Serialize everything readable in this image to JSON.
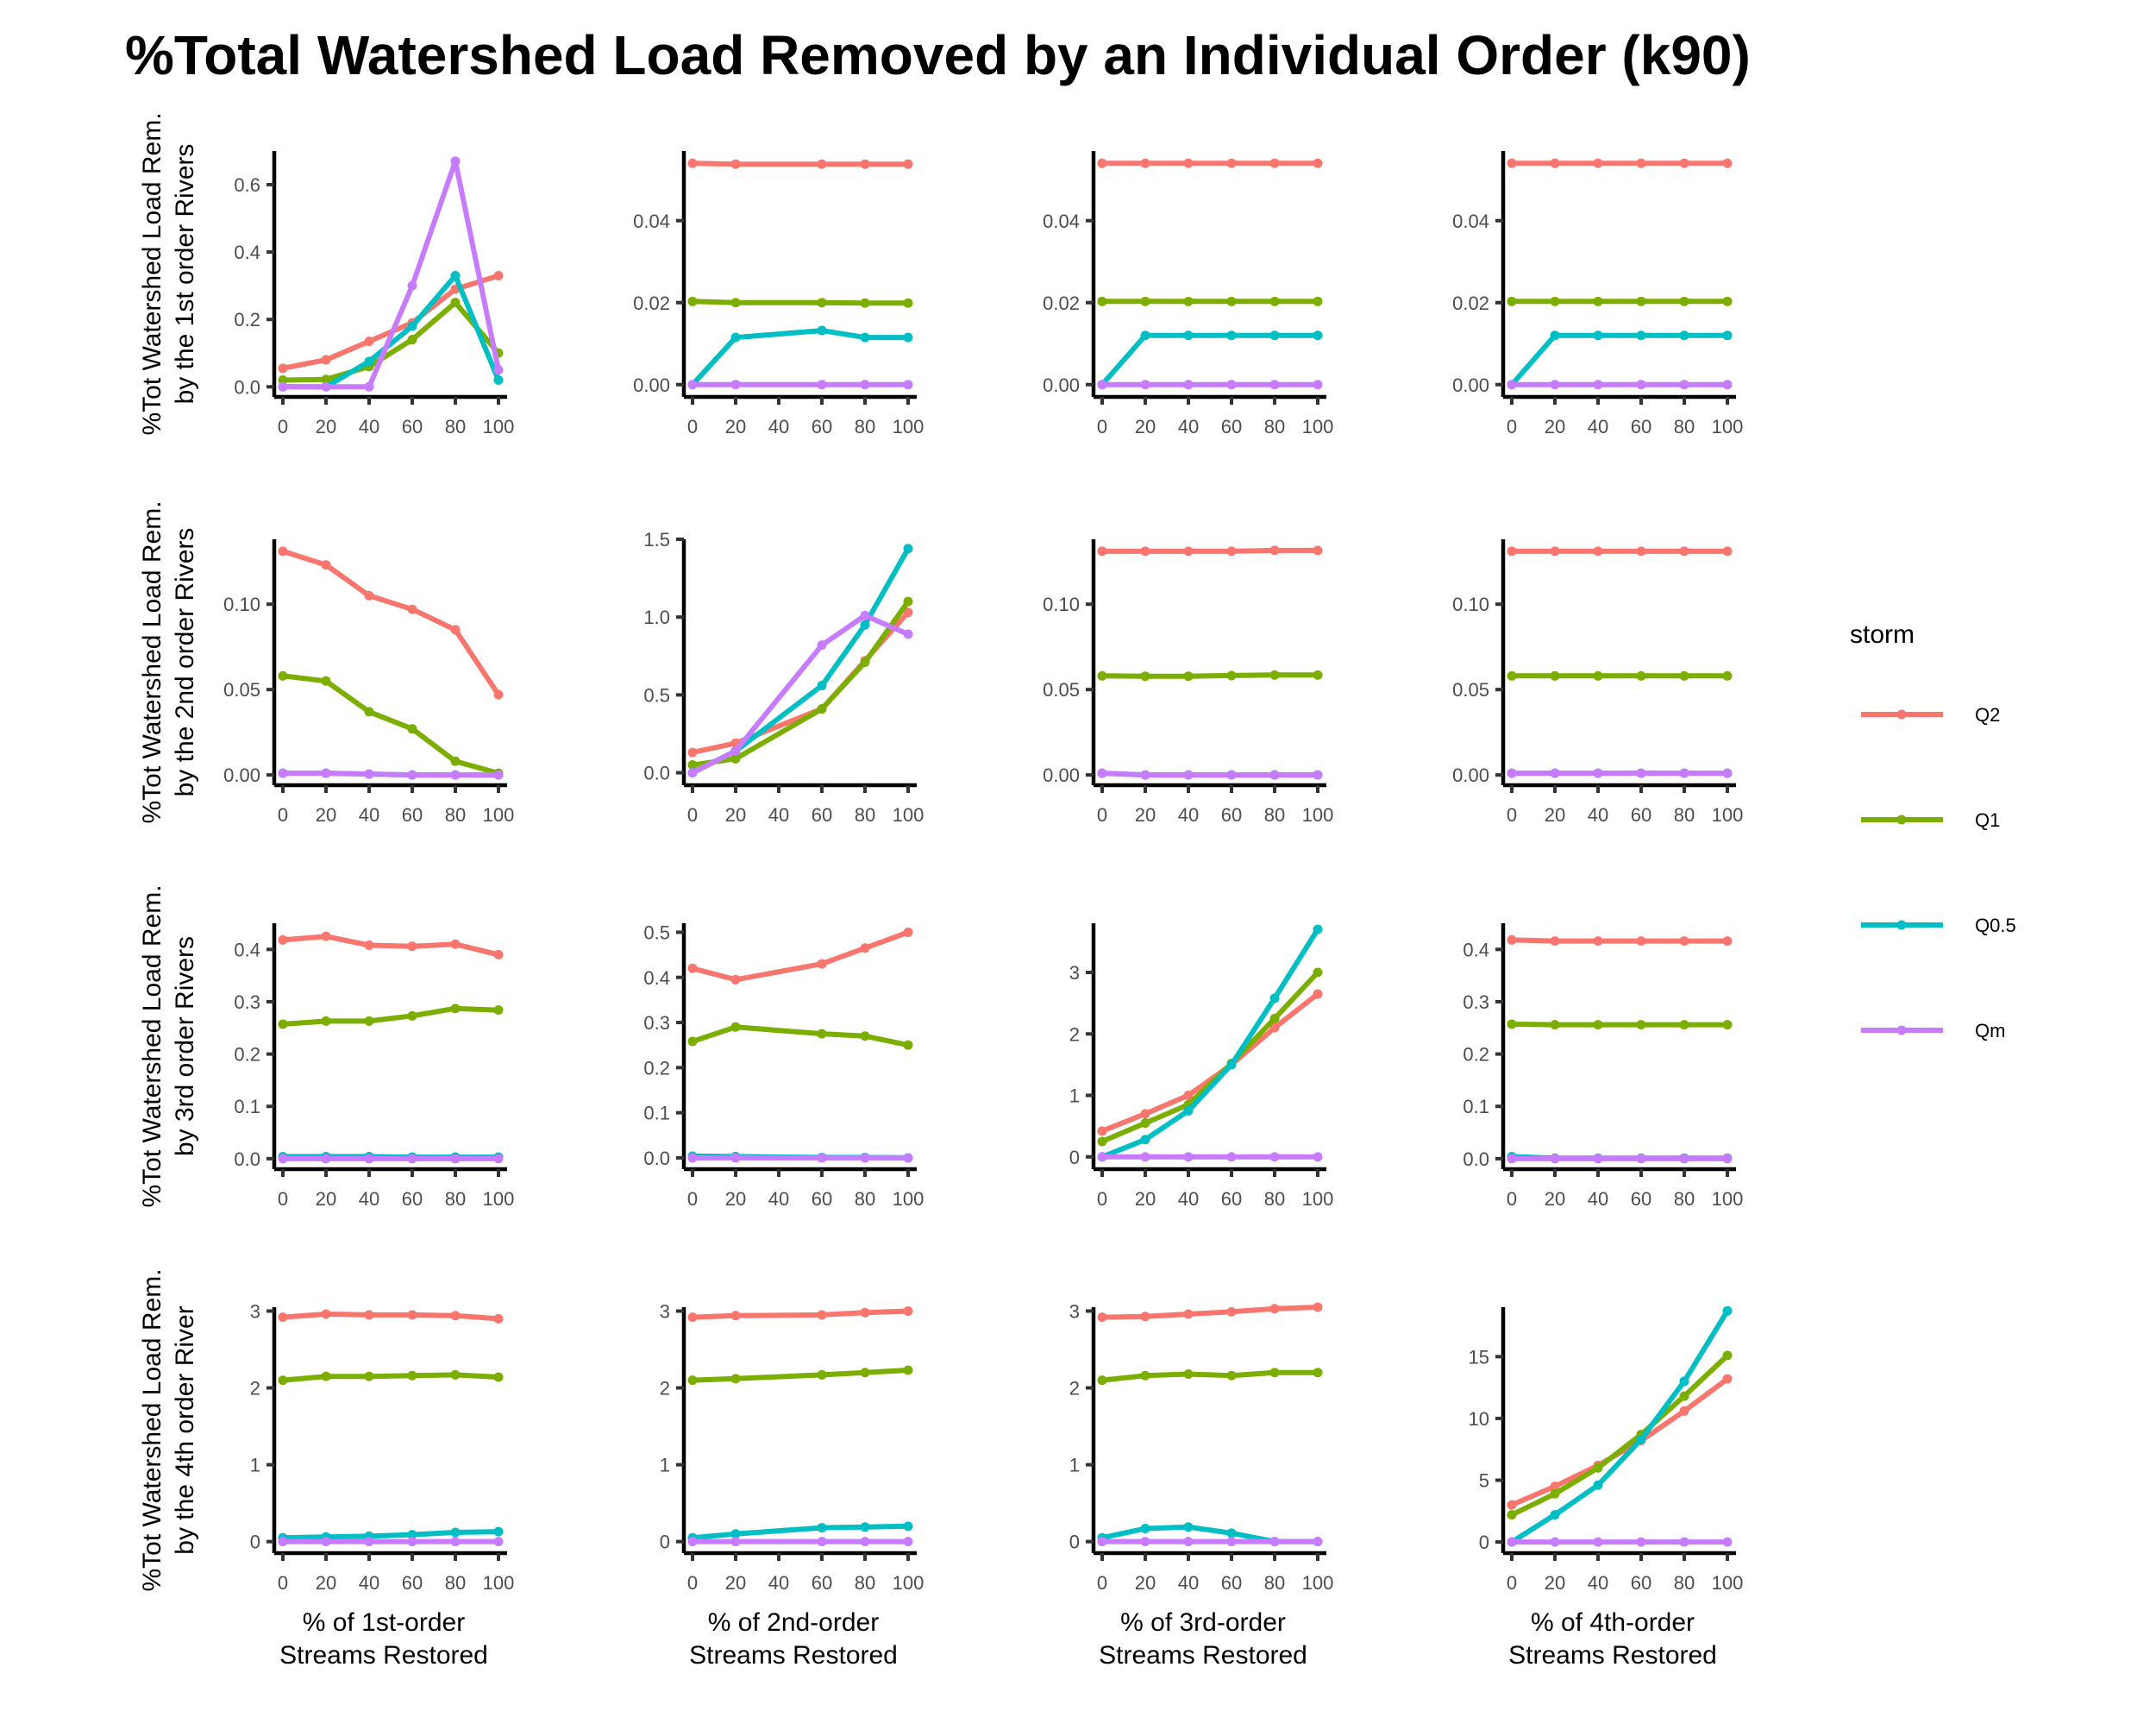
{
  "title": "%Total Watershed Load Removed by an Individual Order (k90)",
  "legend": {
    "title": "storm",
    "entries": [
      {
        "name": "Q2",
        "color": "#F8766D"
      },
      {
        "name": "Q1",
        "color": "#7CAE00"
      },
      {
        "name": "Q0.5",
        "color": "#00BFC4"
      },
      {
        "name": "Qm",
        "color": "#C77CFF"
      }
    ]
  },
  "row_labels": [
    [
      "%Tot Watershed Load Rem.",
      "by the 1st order Rivers"
    ],
    [
      "%Tot Watershed Load Rem.",
      "by the 2nd order Rivers"
    ],
    [
      "%Tot Watershed Load Rem.",
      "by 3rd order Rivers"
    ],
    [
      "%Tot Watershed Load Rem.",
      "by the 4th order River"
    ]
  ],
  "col_labels": [
    [
      "% of 1st-order",
      "Streams Restored"
    ],
    [
      "% of 2nd-order",
      "Streams Restored"
    ],
    [
      "% of 3rd-order",
      "Streams Restored"
    ],
    [
      "% of 4th-order",
      "Streams Restored"
    ]
  ],
  "chart_data": [
    {
      "type": "line",
      "row": 0,
      "col": 0,
      "x": [
        0,
        20,
        40,
        60,
        80,
        100
      ],
      "ylim": [
        -0.03,
        0.7
      ],
      "yticks": [
        0.0,
        0.2,
        0.4,
        0.6
      ],
      "ytick_labels": [
        "0.0",
        "0.2",
        "0.4",
        "0.6"
      ],
      "series": [
        {
          "name": "Q2",
          "values": [
            0.055,
            0.08,
            0.135,
            0.19,
            0.29,
            0.33
          ]
        },
        {
          "name": "Q1",
          "values": [
            0.02,
            0.022,
            0.06,
            0.14,
            0.25,
            0.1
          ]
        },
        {
          "name": "Q0.5",
          "values": [
            0.0,
            0.0,
            0.075,
            0.18,
            0.33,
            0.02
          ]
        },
        {
          "name": "Qm",
          "values": [
            0.0,
            0.0,
            0.0,
            0.3,
            0.67,
            0.05
          ]
        }
      ]
    },
    {
      "type": "line",
      "row": 0,
      "col": 1,
      "x": [
        0,
        20,
        60,
        80,
        100
      ],
      "ylim": [
        -0.003,
        0.057
      ],
      "yticks": [
        0.0,
        0.02,
        0.04
      ],
      "ytick_labels": [
        "0.00",
        "0.02",
        "0.04"
      ],
      "series": [
        {
          "name": "Q2",
          "values": [
            0.054,
            0.0538,
            0.0538,
            0.0538,
            0.0538
          ]
        },
        {
          "name": "Q1",
          "values": [
            0.0203,
            0.02,
            0.02,
            0.0199,
            0.0199
          ]
        },
        {
          "name": "Q0.5",
          "values": [
            0.0,
            0.0115,
            0.0132,
            0.0115,
            0.0115
          ]
        },
        {
          "name": "Qm",
          "values": [
            0.0,
            0.0,
            0.0,
            0.0,
            0.0
          ]
        }
      ]
    },
    {
      "type": "line",
      "row": 0,
      "col": 2,
      "x": [
        0,
        20,
        40,
        60,
        80,
        100
      ],
      "ylim": [
        -0.003,
        0.057
      ],
      "yticks": [
        0.0,
        0.02,
        0.04
      ],
      "ytick_labels": [
        "0.00",
        "0.02",
        "0.04"
      ],
      "series": [
        {
          "name": "Q2",
          "values": [
            0.054,
            0.054,
            0.054,
            0.054,
            0.054,
            0.054
          ]
        },
        {
          "name": "Q1",
          "values": [
            0.0203,
            0.0203,
            0.0203,
            0.0203,
            0.0203,
            0.0203
          ]
        },
        {
          "name": "Q0.5",
          "values": [
            0.0,
            0.012,
            0.012,
            0.012,
            0.012,
            0.012
          ]
        },
        {
          "name": "Qm",
          "values": [
            0.0,
            0.0,
            0.0,
            0.0,
            0.0,
            0.0
          ]
        }
      ]
    },
    {
      "type": "line",
      "row": 0,
      "col": 3,
      "x": [
        0,
        20,
        40,
        60,
        80,
        100
      ],
      "ylim": [
        -0.003,
        0.057
      ],
      "yticks": [
        0.0,
        0.02,
        0.04
      ],
      "ytick_labels": [
        "0.00",
        "0.02",
        "0.04"
      ],
      "series": [
        {
          "name": "Q2",
          "values": [
            0.054,
            0.054,
            0.054,
            0.054,
            0.054,
            0.054
          ]
        },
        {
          "name": "Q1",
          "values": [
            0.0203,
            0.0203,
            0.0203,
            0.0203,
            0.0203,
            0.0203
          ]
        },
        {
          "name": "Q0.5",
          "values": [
            0.0,
            0.012,
            0.012,
            0.012,
            0.012,
            0.012
          ]
        },
        {
          "name": "Qm",
          "values": [
            0.0,
            0.0,
            0.0,
            0.0,
            0.0,
            0.0
          ]
        }
      ]
    },
    {
      "type": "line",
      "row": 1,
      "col": 0,
      "x": [
        0,
        20,
        40,
        60,
        80,
        100
      ],
      "ylim": [
        -0.006,
        0.138
      ],
      "yticks": [
        0.0,
        0.05,
        0.1
      ],
      "ytick_labels": [
        "0.00",
        "0.05",
        "0.10"
      ],
      "series": [
        {
          "name": "Q2",
          "values": [
            0.131,
            0.123,
            0.105,
            0.097,
            0.085,
            0.047
          ]
        },
        {
          "name": "Q1",
          "values": [
            0.058,
            0.055,
            0.037,
            0.027,
            0.008,
            0.001
          ]
        },
        {
          "name": "Q0.5",
          "values": [
            0.001,
            0.001,
            0.0005,
            0.0,
            0.0,
            0.0
          ]
        },
        {
          "name": "Qm",
          "values": [
            0.001,
            0.001,
            0.0005,
            0.0,
            0.0,
            0.0
          ]
        }
      ]
    },
    {
      "type": "line",
      "row": 1,
      "col": 1,
      "x": [
        0,
        20,
        60,
        80,
        100
      ],
      "ylim": [
        -0.08,
        1.5
      ],
      "yticks": [
        0.0,
        0.5,
        1.0,
        1.5
      ],
      "ytick_labels": [
        "0.0",
        "0.5",
        "1.0",
        "1.5"
      ],
      "series": [
        {
          "name": "Q2",
          "values": [
            0.13,
            0.19,
            0.41,
            0.72,
            1.03
          ]
        },
        {
          "name": "Q1",
          "values": [
            0.05,
            0.09,
            0.41,
            0.71,
            1.1
          ]
        },
        {
          "name": "Q0.5",
          "values": [
            0.0,
            0.14,
            0.56,
            0.95,
            1.44
          ]
        },
        {
          "name": "Qm",
          "values": [
            0.0,
            0.14,
            0.82,
            1.01,
            0.89
          ]
        }
      ]
    },
    {
      "type": "line",
      "row": 1,
      "col": 2,
      "x": [
        0,
        20,
        40,
        60,
        80,
        100
      ],
      "ylim": [
        -0.006,
        0.138
      ],
      "yticks": [
        0.0,
        0.05,
        0.1
      ],
      "ytick_labels": [
        "0.00",
        "0.05",
        "0.10"
      ],
      "series": [
        {
          "name": "Q2",
          "values": [
            0.131,
            0.131,
            0.131,
            0.131,
            0.1315,
            0.1315
          ]
        },
        {
          "name": "Q1",
          "values": [
            0.058,
            0.0578,
            0.0578,
            0.0582,
            0.0585,
            0.0585
          ]
        },
        {
          "name": "Q0.5",
          "values": [
            0.001,
            0.0,
            0.0,
            0.0,
            0.0,
            0.0
          ]
        },
        {
          "name": "Qm",
          "values": [
            0.001,
            0.0,
            0.0,
            0.0,
            0.0,
            0.0
          ]
        }
      ]
    },
    {
      "type": "line",
      "row": 1,
      "col": 3,
      "x": [
        0,
        20,
        40,
        60,
        80,
        100
      ],
      "ylim": [
        -0.006,
        0.138
      ],
      "yticks": [
        0.0,
        0.05,
        0.1
      ],
      "ytick_labels": [
        "0.00",
        "0.05",
        "0.10"
      ],
      "series": [
        {
          "name": "Q2",
          "values": [
            0.131,
            0.131,
            0.131,
            0.131,
            0.131,
            0.131
          ]
        },
        {
          "name": "Q1",
          "values": [
            0.058,
            0.058,
            0.058,
            0.058,
            0.058,
            0.058
          ]
        },
        {
          "name": "Q0.5",
          "values": [
            0.001,
            0.001,
            0.001,
            0.001,
            0.001,
            0.001
          ]
        },
        {
          "name": "Qm",
          "values": [
            0.001,
            0.001,
            0.001,
            0.001,
            0.001,
            0.001
          ]
        }
      ]
    },
    {
      "type": "line",
      "row": 2,
      "col": 0,
      "x": [
        0,
        20,
        40,
        60,
        80,
        100
      ],
      "ylim": [
        -0.02,
        0.45
      ],
      "yticks": [
        0.0,
        0.1,
        0.2,
        0.3,
        0.4
      ],
      "ytick_labels": [
        "0.0",
        "0.1",
        "0.2",
        "0.3",
        "0.4"
      ],
      "series": [
        {
          "name": "Q2",
          "values": [
            0.418,
            0.425,
            0.408,
            0.406,
            0.41,
            0.39
          ]
        },
        {
          "name": "Q1",
          "values": [
            0.257,
            0.263,
            0.263,
            0.273,
            0.287,
            0.284
          ]
        },
        {
          "name": "Q0.5",
          "values": [
            0.004,
            0.004,
            0.004,
            0.003,
            0.003,
            0.003
          ]
        },
        {
          "name": "Qm",
          "values": [
            0.0,
            0.0,
            0.0,
            0.0,
            0.0,
            0.0
          ]
        }
      ]
    },
    {
      "type": "line",
      "row": 2,
      "col": 1,
      "x": [
        0,
        20,
        60,
        80,
        100
      ],
      "ylim": [
        -0.025,
        0.52
      ],
      "yticks": [
        0.0,
        0.1,
        0.2,
        0.3,
        0.4,
        0.5
      ],
      "ytick_labels": [
        "0.0",
        "0.1",
        "0.2",
        "0.3",
        "0.4",
        "0.5"
      ],
      "series": [
        {
          "name": "Q2",
          "values": [
            0.42,
            0.395,
            0.43,
            0.465,
            0.5
          ]
        },
        {
          "name": "Q1",
          "values": [
            0.258,
            0.29,
            0.275,
            0.27,
            0.25
          ]
        },
        {
          "name": "Q0.5",
          "values": [
            0.004,
            0.003,
            0.001,
            0.001,
            0.0
          ]
        },
        {
          "name": "Qm",
          "values": [
            0.0,
            0.0,
            0.0,
            0.0,
            0.0
          ]
        }
      ]
    },
    {
      "type": "line",
      "row": 2,
      "col": 2,
      "x": [
        0,
        20,
        40,
        60,
        80,
        100
      ],
      "ylim": [
        -0.2,
        3.8
      ],
      "yticks": [
        0,
        1,
        2,
        3
      ],
      "ytick_labels": [
        "0",
        "1",
        "2",
        "3"
      ],
      "series": [
        {
          "name": "Q2",
          "values": [
            0.42,
            0.7,
            1.0,
            1.5,
            2.1,
            2.65
          ]
        },
        {
          "name": "Q1",
          "values": [
            0.25,
            0.55,
            0.85,
            1.52,
            2.25,
            3.0
          ]
        },
        {
          "name": "Q0.5",
          "values": [
            0.0,
            0.28,
            0.75,
            1.5,
            2.58,
            3.7
          ]
        },
        {
          "name": "Qm",
          "values": [
            0.0,
            0.0,
            0.0,
            0.0,
            0.0,
            0.0
          ]
        }
      ]
    },
    {
      "type": "line",
      "row": 2,
      "col": 3,
      "x": [
        0,
        20,
        40,
        60,
        80,
        100
      ],
      "ylim": [
        -0.02,
        0.45
      ],
      "yticks": [
        0.0,
        0.1,
        0.2,
        0.3,
        0.4
      ],
      "ytick_labels": [
        "0.0",
        "0.1",
        "0.2",
        "0.3",
        "0.4"
      ],
      "series": [
        {
          "name": "Q2",
          "values": [
            0.418,
            0.416,
            0.416,
            0.416,
            0.416,
            0.416
          ]
        },
        {
          "name": "Q1",
          "values": [
            0.257,
            0.256,
            0.256,
            0.256,
            0.256,
            0.256
          ]
        },
        {
          "name": "Q0.5",
          "values": [
            0.004,
            0.001,
            0.001,
            0.001,
            0.001,
            0.001
          ]
        },
        {
          "name": "Qm",
          "values": [
            0.0,
            0.0,
            0.0,
            0.0,
            0.0,
            0.0
          ]
        }
      ]
    },
    {
      "type": "line",
      "row": 3,
      "col": 0,
      "x": [
        0,
        20,
        40,
        60,
        80,
        100
      ],
      "ylim": [
        -0.15,
        3.05
      ],
      "yticks": [
        0,
        1,
        2,
        3
      ],
      "ytick_labels": [
        "0",
        "1",
        "2",
        "3"
      ],
      "series": [
        {
          "name": "Q2",
          "values": [
            2.92,
            2.96,
            2.95,
            2.95,
            2.94,
            2.9
          ]
        },
        {
          "name": "Q1",
          "values": [
            2.1,
            2.15,
            2.15,
            2.16,
            2.17,
            2.14
          ]
        },
        {
          "name": "Q0.5",
          "values": [
            0.05,
            0.06,
            0.07,
            0.09,
            0.12,
            0.13
          ]
        },
        {
          "name": "Qm",
          "values": [
            0.0,
            0.0,
            0.0,
            0.0,
            0.0,
            0.0
          ]
        }
      ]
    },
    {
      "type": "line",
      "row": 3,
      "col": 1,
      "x": [
        0,
        20,
        60,
        80,
        100
      ],
      "ylim": [
        -0.15,
        3.05
      ],
      "yticks": [
        0,
        1,
        2,
        3
      ],
      "ytick_labels": [
        "0",
        "1",
        "2",
        "3"
      ],
      "series": [
        {
          "name": "Q2",
          "values": [
            2.92,
            2.94,
            2.95,
            2.98,
            3.0
          ]
        },
        {
          "name": "Q1",
          "values": [
            2.1,
            2.12,
            2.17,
            2.2,
            2.23
          ]
        },
        {
          "name": "Q0.5",
          "values": [
            0.05,
            0.1,
            0.18,
            0.19,
            0.2
          ]
        },
        {
          "name": "Qm",
          "values": [
            0.0,
            0.0,
            0.0,
            0.0,
            0.0
          ]
        }
      ]
    },
    {
      "type": "line",
      "row": 3,
      "col": 2,
      "x": [
        0,
        20,
        40,
        60,
        80,
        100
      ],
      "ylim": [
        -0.15,
        3.05
      ],
      "yticks": [
        0,
        1,
        2,
        3
      ],
      "ytick_labels": [
        "0",
        "1",
        "2",
        "3"
      ],
      "series": [
        {
          "name": "Q2",
          "values": [
            2.92,
            2.93,
            2.96,
            2.99,
            3.03,
            3.05
          ]
        },
        {
          "name": "Q1",
          "values": [
            2.1,
            2.16,
            2.18,
            2.16,
            2.2,
            2.2
          ]
        },
        {
          "name": "Q0.5",
          "values": [
            0.05,
            0.17,
            0.19,
            0.11,
            0.0,
            0.0
          ]
        },
        {
          "name": "Qm",
          "values": [
            0.0,
            0.0,
            0.0,
            0.0,
            0.0,
            0.0
          ]
        }
      ]
    },
    {
      "type": "line",
      "row": 3,
      "col": 3,
      "x": [
        0,
        20,
        40,
        60,
        80,
        100
      ],
      "ylim": [
        -0.9,
        19.0
      ],
      "yticks": [
        0,
        5,
        10,
        15
      ],
      "ytick_labels": [
        "0",
        "5",
        "10",
        "15"
      ],
      "series": [
        {
          "name": "Q2",
          "values": [
            3.0,
            4.5,
            6.2,
            8.2,
            10.6,
            13.2
          ]
        },
        {
          "name": "Q1",
          "values": [
            2.2,
            3.9,
            6.0,
            8.7,
            11.8,
            15.1
          ]
        },
        {
          "name": "Q0.5",
          "values": [
            0.0,
            2.2,
            4.6,
            8.3,
            13.0,
            18.7
          ]
        },
        {
          "name": "Qm",
          "values": [
            0.0,
            0.0,
            0.0,
            0.0,
            0.0,
            0.0
          ]
        }
      ]
    }
  ]
}
